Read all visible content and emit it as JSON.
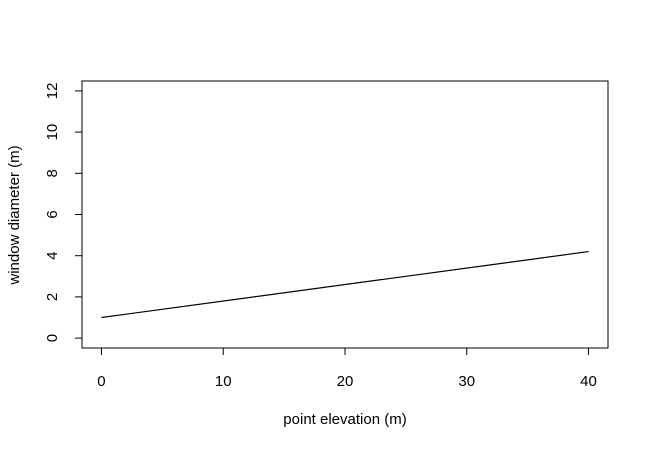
{
  "chart_data": {
    "type": "line",
    "title": "",
    "xlabel": "point elevation (m)",
    "ylabel": "window diameter (m)",
    "xlim": [
      -1.6,
      41.6
    ],
    "ylim": [
      -0.48,
      12.48
    ],
    "x_ticks": [
      0,
      10,
      20,
      30,
      40
    ],
    "y_ticks": [
      0,
      2,
      4,
      6,
      8,
      10,
      12
    ],
    "x_tick_labels": [
      "0",
      "10",
      "20",
      "30",
      "40"
    ],
    "y_tick_labels": [
      "0",
      "2",
      "4",
      "6",
      "8",
      "10",
      "12"
    ],
    "grid": false,
    "legend": "none",
    "series": [
      {
        "x": [
          0,
          40
        ],
        "y": [
          1.0,
          4.2
        ]
      }
    ],
    "colors": {
      "line": "#000000",
      "axis": "#000000"
    }
  }
}
